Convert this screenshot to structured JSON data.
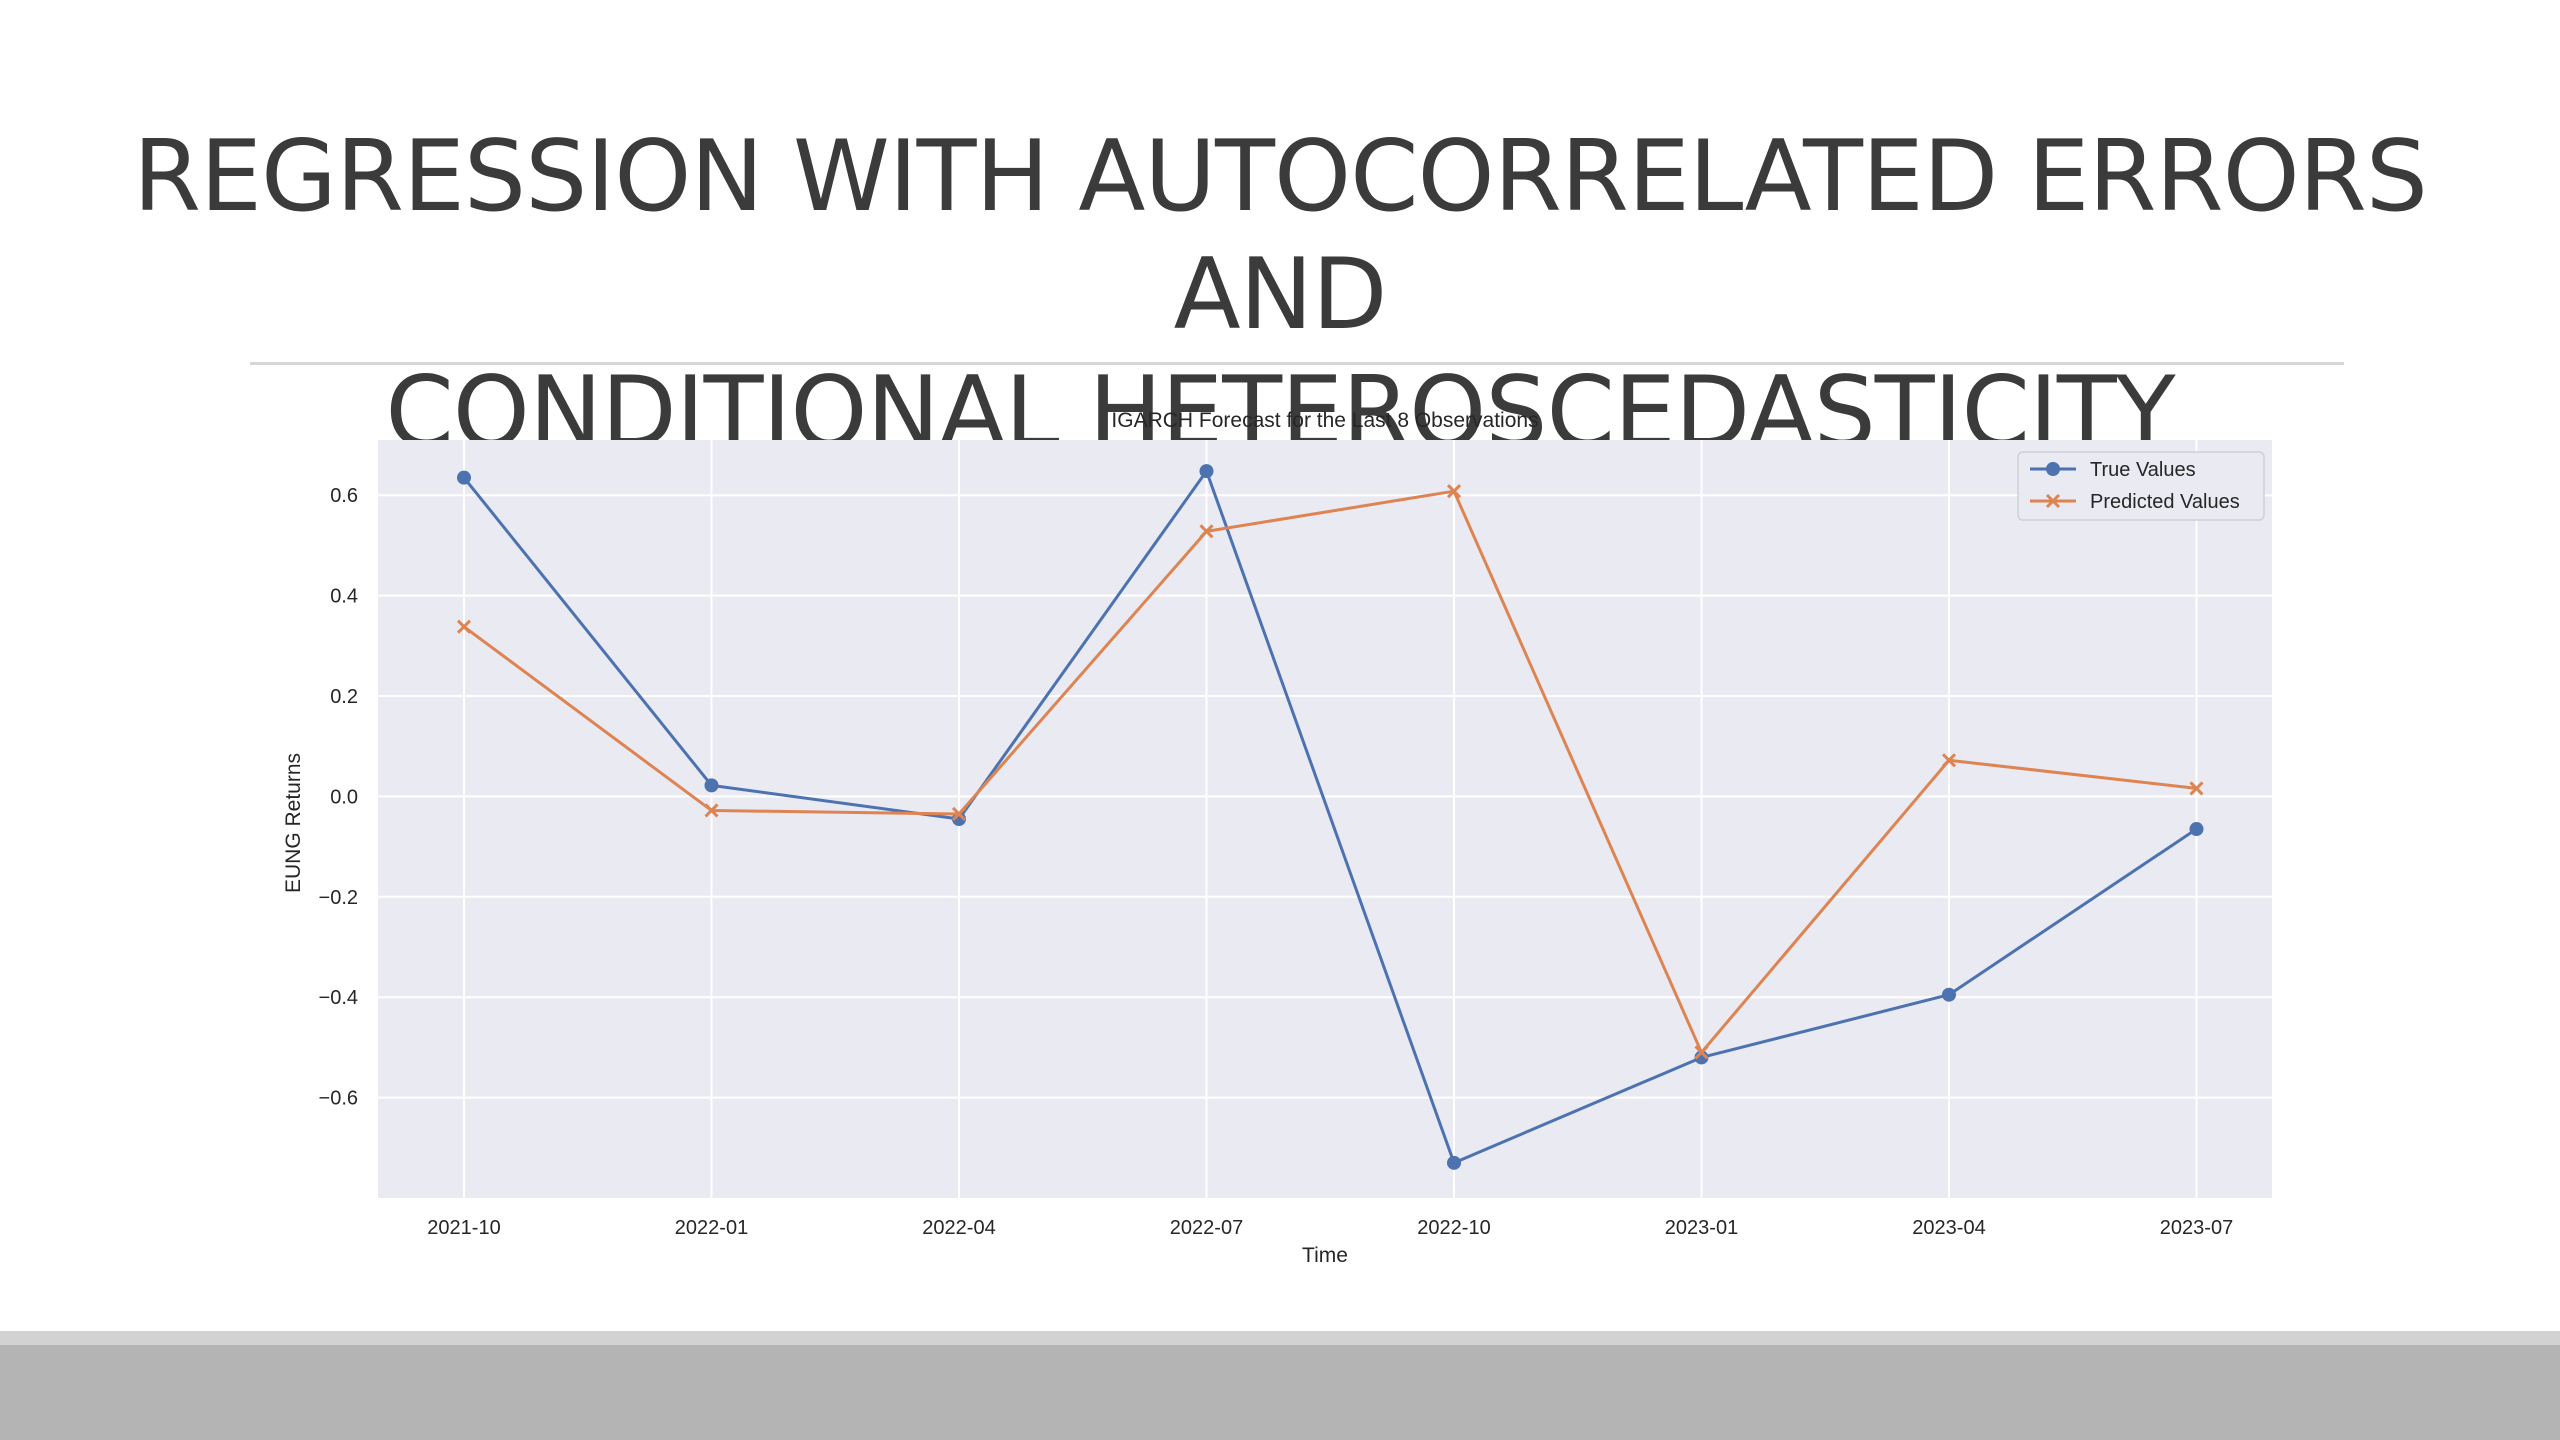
{
  "slide": {
    "title_line1": "REGRESSION WITH AUTOCORRELATED ERRORS AND",
    "title_line2": "CONDITIONAL HETEROSCEDASTICITY COMPONENTS"
  },
  "chart_data": {
    "type": "line",
    "title": "IGARCH Forecast for the Last 8 Observations",
    "xlabel": "Time",
    "ylabel": "EUNG Returns",
    "categories": [
      "2021-10",
      "2022-01",
      "2022-04",
      "2022-07",
      "2022-10",
      "2023-01",
      "2023-04",
      "2023-07"
    ],
    "series": [
      {
        "name": "True Values",
        "color": "#4c72b0",
        "marker": "circle",
        "values": [
          0.635,
          0.022,
          -0.045,
          0.648,
          -0.73,
          -0.52,
          -0.395,
          -0.065
        ]
      },
      {
        "name": "Predicted Values",
        "color": "#dd8452",
        "marker": "x",
        "values": [
          0.338,
          -0.028,
          -0.035,
          0.528,
          0.608,
          -0.51,
          0.072,
          0.016
        ]
      }
    ],
    "yticks": [
      0.6,
      0.4,
      0.2,
      0.0,
      -0.2,
      -0.4,
      -0.6
    ],
    "ytick_labels": [
      "0.6",
      "0.4",
      "0.2",
      "0.0",
      "−0.2",
      "−0.4",
      "−0.6"
    ],
    "ylim": [
      -0.8,
      0.71
    ],
    "grid": true,
    "legend": "top-right",
    "background": "#eaeaf2"
  }
}
